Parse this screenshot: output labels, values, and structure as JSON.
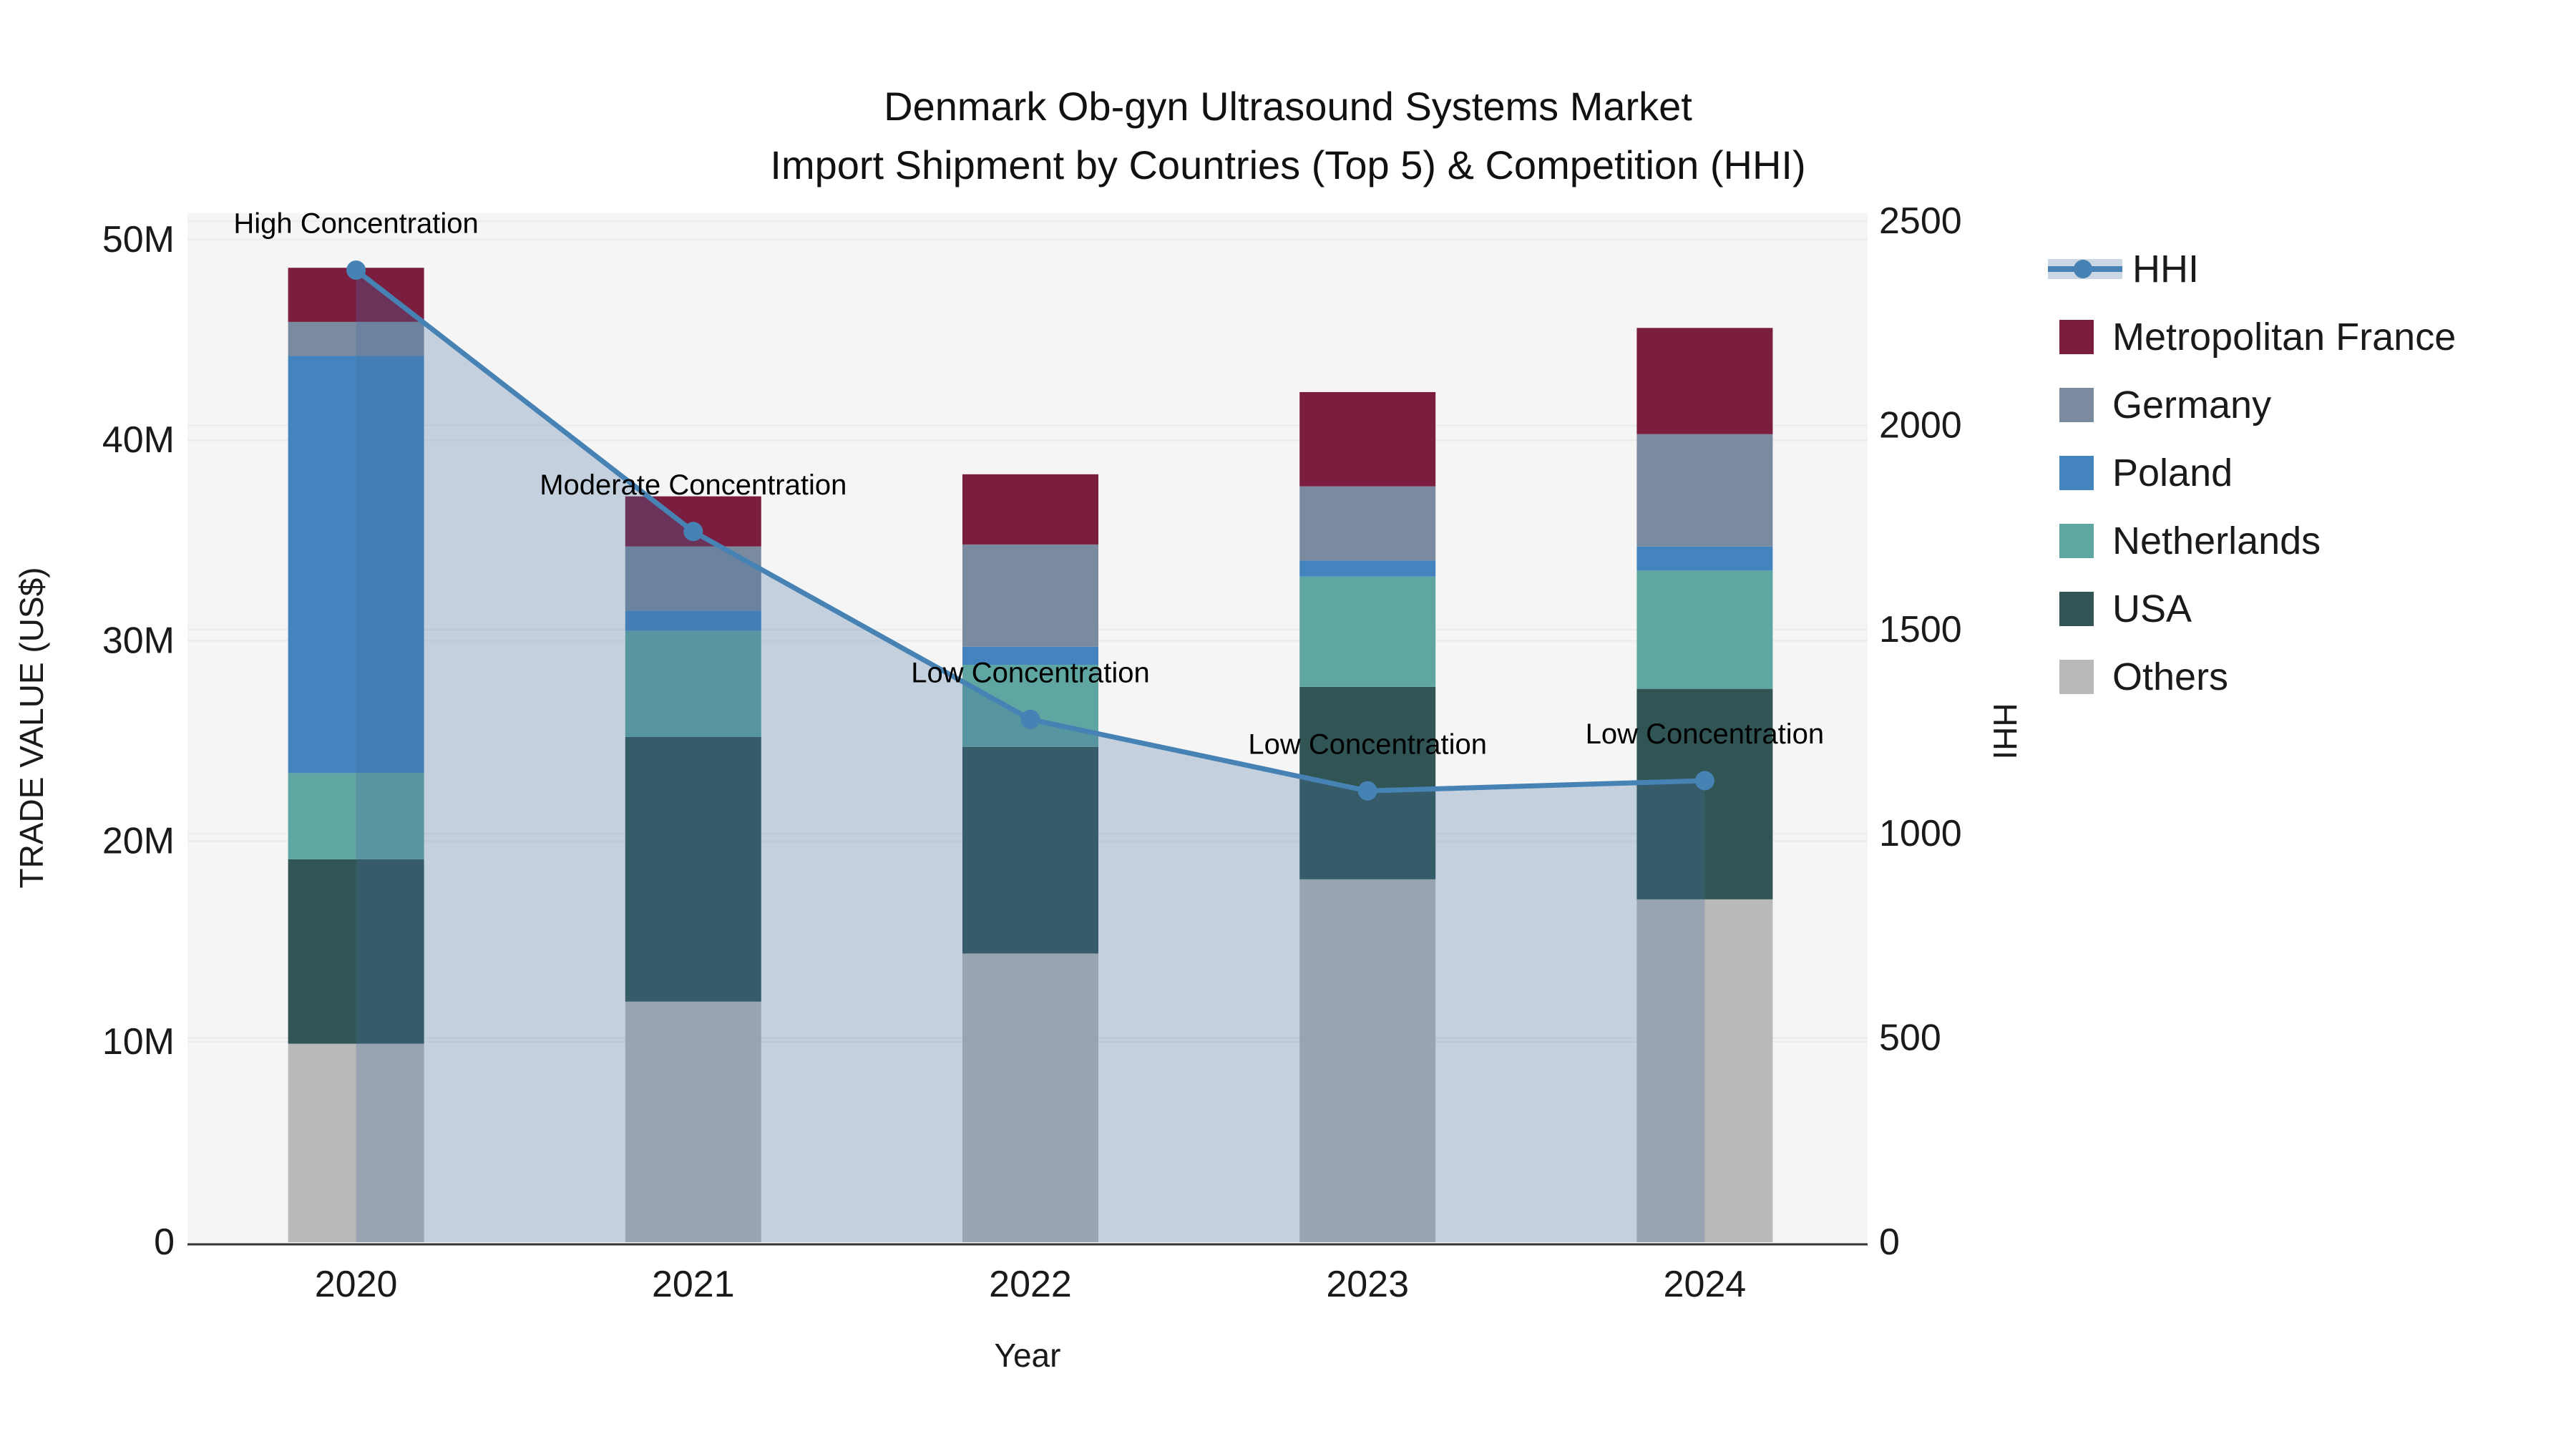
{
  "title": {
    "line1": "Denmark Ob-gyn Ultrasound Systems Market",
    "line2": "Import Shipment by Countries (Top 5) & Competition (HHI)"
  },
  "legend": {
    "items": [
      {
        "label": "HHI",
        "type": "line",
        "color": "#4682b4"
      },
      {
        "label": "Metropolitan France",
        "type": "swatch",
        "color": "#7b1d3f"
      },
      {
        "label": "Germany",
        "type": "swatch",
        "color": "#7b8b9f"
      },
      {
        "label": "Poland",
        "type": "swatch",
        "color": "#4384bf"
      },
      {
        "label": "Netherlands",
        "type": "swatch",
        "color": "#5fa5a1"
      },
      {
        "label": "USA",
        "type": "swatch",
        "color": "#315555"
      },
      {
        "label": "Others",
        "type": "swatch",
        "color": "#b9b9b9"
      }
    ]
  },
  "chart_data": {
    "type": "bar+line",
    "title": "Denmark Ob-gyn Ultrasound Systems Market — Import Shipment by Countries (Top 5) & Competition (HHI)",
    "categories": [
      "2020",
      "2021",
      "2022",
      "2023",
      "2024"
    ],
    "xlabel": "Year",
    "ylabel_left": "TRADE VALUE (US$)",
    "ylabel_right": "HHI",
    "ylim_left_millions": [
      0,
      50
    ],
    "ylim_right": [
      0,
      2500
    ],
    "left_tick_labels": [
      "0",
      "10M",
      "20M",
      "30M",
      "40M",
      "50M"
    ],
    "left_tick_values": [
      0,
      10,
      20,
      30,
      40,
      50
    ],
    "right_tick_labels": [
      "0",
      "500",
      "1000",
      "1500",
      "2000",
      "2500"
    ],
    "right_tick_values": [
      0,
      500,
      1000,
      1500,
      2000,
      2500
    ],
    "bar_stack_order_bottom_to_top": [
      "Others",
      "USA",
      "Netherlands",
      "Poland",
      "Germany",
      "Metropolitan France"
    ],
    "series": [
      {
        "name": "Others",
        "color": "#b9b9b9",
        "values_millions": [
          9.9,
          12.0,
          14.4,
          18.1,
          17.1
        ]
      },
      {
        "name": "USA",
        "color": "#315555",
        "values_millions": [
          9.2,
          13.2,
          10.3,
          9.6,
          10.5
        ]
      },
      {
        "name": "Netherlands",
        "color": "#5fa5a1",
        "values_millions": [
          4.3,
          5.3,
          4.1,
          5.5,
          5.9
        ]
      },
      {
        "name": "Poland",
        "color": "#4384bf",
        "values_millions": [
          20.8,
          1.0,
          0.9,
          0.8,
          1.2
        ]
      },
      {
        "name": "Germany",
        "color": "#7b8b9f",
        "values_millions": [
          1.7,
          3.2,
          5.1,
          3.7,
          5.6
        ]
      },
      {
        "name": "Metropolitan France",
        "color": "#7b1d3f",
        "values_millions": [
          2.7,
          2.5,
          3.5,
          4.7,
          5.3
        ]
      }
    ],
    "bar_totals_millions": [
      48.6,
      37.2,
      38.3,
      42.4,
      45.6
    ],
    "hhi_line": {
      "name": "HHI",
      "color": "#4682b4",
      "fill_color": "rgba(70,110,160,0.28)",
      "values": [
        2380,
        1740,
        1280,
        1105,
        1130
      ],
      "fill_to_zero": true
    },
    "annotations": [
      {
        "x": "2020",
        "text": "High Concentration"
      },
      {
        "x": "2021",
        "text": "Moderate Concentration"
      },
      {
        "x": "2022",
        "text": "Low Concentration"
      },
      {
        "x": "2023",
        "text": "Low Concentration"
      },
      {
        "x": "2024",
        "text": "Low Concentration"
      }
    ],
    "plot_background": "#f5f5f5",
    "gridline_color": "#ececec",
    "grid_on": true,
    "legend_position": "right"
  }
}
